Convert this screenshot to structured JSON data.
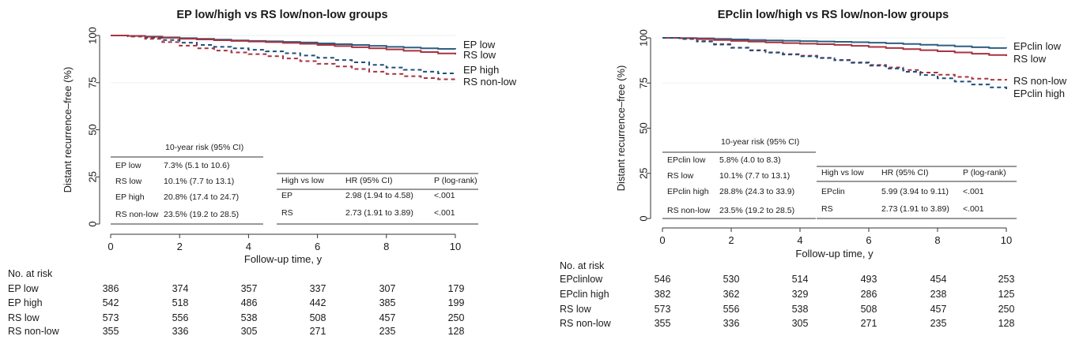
{
  "chart_data": [
    {
      "type": "line",
      "title": "EP low/high vs RS low/non-low groups",
      "xlabel": "Follow-up time, y",
      "ylabel": "Distant recurrence–free (%)",
      "xlim": [
        0,
        10
      ],
      "ylim": [
        0,
        100
      ],
      "xticks": [
        "0",
        "2",
        "4",
        "6",
        "8",
        "10"
      ],
      "yticks": [
        "0",
        "25",
        "50",
        "75",
        "100"
      ],
      "series": [
        {
          "name": "EP low",
          "color": "#2e5f82",
          "dash": false,
          "points": [
            [
              0,
              100
            ],
            [
              0.5,
              99.8
            ],
            [
              1,
              99.4
            ],
            [
              1.5,
              99
            ],
            [
              2,
              98.6
            ],
            [
              2.5,
              98.2
            ],
            [
              3,
              97.8
            ],
            [
              3.5,
              97.4
            ],
            [
              4,
              97.1
            ],
            [
              4.5,
              96.9
            ],
            [
              5,
              96.6
            ],
            [
              5.5,
              96.3
            ],
            [
              6,
              95.8
            ],
            [
              6.5,
              95.4
            ],
            [
              7,
              95
            ],
            [
              7.5,
              94.5
            ],
            [
              8,
              94
            ],
            [
              8.5,
              93.6
            ],
            [
              9,
              93.2
            ],
            [
              9.5,
              92.9
            ],
            [
              10,
              92.7
            ]
          ]
        },
        {
          "name": "RS low",
          "color": "#a8323f",
          "dash": false,
          "points": [
            [
              0,
              100
            ],
            [
              0.5,
              99.8
            ],
            [
              1,
              99.3
            ],
            [
              1.5,
              98.8
            ],
            [
              2,
              98.3
            ],
            [
              2.5,
              97.9
            ],
            [
              3,
              97.5
            ],
            [
              3.5,
              97.1
            ],
            [
              4,
              96.8
            ],
            [
              4.5,
              96.5
            ],
            [
              5,
              96.1
            ],
            [
              5.5,
              95.6
            ],
            [
              6,
              95
            ],
            [
              6.5,
              94.4
            ],
            [
              7,
              93.8
            ],
            [
              7.5,
              93.2
            ],
            [
              8,
              92.6
            ],
            [
              8.5,
              91.9
            ],
            [
              9,
              91.2
            ],
            [
              9.5,
              90.5
            ],
            [
              10,
              89.9
            ]
          ]
        },
        {
          "name": "EP high",
          "color": "#1f4e79",
          "dash": true,
          "points": [
            [
              0,
              100
            ],
            [
              0.5,
              99.6
            ],
            [
              1,
              98.8
            ],
            [
              1.5,
              97.6
            ],
            [
              2,
              96.2
            ],
            [
              2.5,
              95
            ],
            [
              3,
              94
            ],
            [
              3.5,
              93.2
            ],
            [
              4,
              92.4
            ],
            [
              4.5,
              91.6
            ],
            [
              5,
              90.6
            ],
            [
              5.5,
              89.4
            ],
            [
              6,
              88.2
            ],
            [
              6.5,
              87
            ],
            [
              7,
              85.8
            ],
            [
              7.5,
              84.4
            ],
            [
              8,
              83
            ],
            [
              8.5,
              81.8
            ],
            [
              9,
              80.8
            ],
            [
              9.5,
              79.9
            ],
            [
              10,
              79.2
            ]
          ]
        },
        {
          "name": "RS non-low",
          "color": "#a8323f",
          "dash": true,
          "points": [
            [
              0,
              100
            ],
            [
              0.5,
              99.4
            ],
            [
              1,
              98.2
            ],
            [
              1.5,
              96.5
            ],
            [
              2,
              94.6
            ],
            [
              2.5,
              93.2
            ],
            [
              3,
              92
            ],
            [
              3.5,
              91
            ],
            [
              4,
              90.1
            ],
            [
              4.5,
              89
            ],
            [
              5,
              87.8
            ],
            [
              5.5,
              86.4
            ],
            [
              6,
              85
            ],
            [
              6.5,
              83.6
            ],
            [
              7,
              82.2
            ],
            [
              7.5,
              80.8
            ],
            [
              8,
              79.6
            ],
            [
              8.5,
              78.4
            ],
            [
              9,
              77.4
            ],
            [
              9.5,
              76.8
            ],
            [
              10,
              76.5
            ]
          ]
        }
      ],
      "risk_table": {
        "header": [
          "",
          "10-year risk (95% CI)"
        ],
        "rows": [
          [
            "EP low",
            "7.3% (5.1 to 10.6)"
          ],
          [
            "RS low",
            "10.1% (7.7 to 13.1)"
          ],
          [
            "EP high",
            "20.8% (17.4 to 24.7)"
          ],
          [
            "RS non-low",
            "23.5% (19.2 to 28.5)"
          ]
        ]
      },
      "hr_table": {
        "header": [
          "High vs low",
          "HR (95% CI)",
          "P (log-rank)"
        ],
        "rows": [
          [
            "EP",
            "2.98 (1.94 to 4.58)",
            "<.001"
          ],
          [
            "RS",
            "2.73 (1.91 to 3.89)",
            "<.001"
          ]
        ]
      },
      "at_risk": {
        "title": "No. at risk",
        "rows": [
          {
            "label": "EP low",
            "values": [
              "386",
              "374",
              "357",
              "337",
              "307",
              "179"
            ]
          },
          {
            "label": "EP high",
            "values": [
              "542",
              "518",
              "486",
              "442",
              "385",
              "199"
            ]
          },
          {
            "label": "RS low",
            "values": [
              "573",
              "556",
              "538",
              "508",
              "457",
              "250"
            ]
          },
          {
            "label": "RS non-low",
            "values": [
              "355",
              "336",
              "305",
              "271",
              "235",
              "128"
            ]
          }
        ]
      }
    },
    {
      "type": "line",
      "title": "EPclin low/high vs RS low/non-low groups",
      "xlabel": "Follow-up time, y",
      "ylabel": "Distant recurrence–free (%)",
      "xlim": [
        0,
        10
      ],
      "ylim": [
        0,
        100
      ],
      "xticks": [
        "0",
        "2",
        "4",
        "6",
        "8",
        "10"
      ],
      "yticks": [
        "0",
        "25",
        "50",
        "75",
        "100"
      ],
      "series": [
        {
          "name": "EPclin low",
          "color": "#2e5f82",
          "dash": false,
          "points": [
            [
              0,
              100
            ],
            [
              0.5,
              99.9
            ],
            [
              1,
              99.7
            ],
            [
              1.5,
              99.4
            ],
            [
              2,
              99.1
            ],
            [
              2.5,
              98.8
            ],
            [
              3,
              98.6
            ],
            [
              3.5,
              98.4
            ],
            [
              4,
              98.2
            ],
            [
              4.5,
              98
            ],
            [
              5,
              97.8
            ],
            [
              5.5,
              97.6
            ],
            [
              6,
              97.3
            ],
            [
              6.5,
              97
            ],
            [
              7,
              96.6
            ],
            [
              7.5,
              96.2
            ],
            [
              8,
              95.8
            ],
            [
              8.5,
              95.3
            ],
            [
              9,
              94.8
            ],
            [
              9.5,
              94.4
            ],
            [
              10,
              94.2
            ]
          ]
        },
        {
          "name": "RS low",
          "color": "#a8323f",
          "dash": false,
          "points": [
            [
              0,
              100
            ],
            [
              0.5,
              99.8
            ],
            [
              1,
              99.3
            ],
            [
              1.5,
              98.8
            ],
            [
              2,
              98.3
            ],
            [
              2.5,
              97.9
            ],
            [
              3,
              97.5
            ],
            [
              3.5,
              97.1
            ],
            [
              4,
              96.8
            ],
            [
              4.5,
              96.5
            ],
            [
              5,
              96.1
            ],
            [
              5.5,
              95.6
            ],
            [
              6,
              95
            ],
            [
              6.5,
              94.4
            ],
            [
              7,
              93.8
            ],
            [
              7.5,
              93.2
            ],
            [
              8,
              92.6
            ],
            [
              8.5,
              91.9
            ],
            [
              9,
              91.2
            ],
            [
              9.5,
              90.5
            ],
            [
              10,
              89.9
            ]
          ]
        },
        {
          "name": "RS non-low",
          "color": "#a8323f",
          "dash": true,
          "points": [
            [
              0,
              100
            ],
            [
              0.5,
              99.4
            ],
            [
              1,
              98.2
            ],
            [
              1.5,
              96.5
            ],
            [
              2,
              94.6
            ],
            [
              2.5,
              93.2
            ],
            [
              3,
              92
            ],
            [
              3.5,
              91
            ],
            [
              4,
              90.1
            ],
            [
              4.5,
              89
            ],
            [
              5,
              87.8
            ],
            [
              5.5,
              86.4
            ],
            [
              6,
              85
            ],
            [
              6.5,
              83.6
            ],
            [
              7,
              82.2
            ],
            [
              7.5,
              80.8
            ],
            [
              8,
              79.6
            ],
            [
              8.5,
              78.4
            ],
            [
              9,
              77.4
            ],
            [
              9.5,
              76.8
            ],
            [
              10,
              76.5
            ]
          ]
        },
        {
          "name": "EPclin high",
          "color": "#1f4e79",
          "dash": true,
          "points": [
            [
              0,
              100
            ],
            [
              0.5,
              99.4
            ],
            [
              1,
              98
            ],
            [
              1.5,
              96.3
            ],
            [
              2,
              94.5
            ],
            [
              2.5,
              93
            ],
            [
              3,
              91.8
            ],
            [
              3.5,
              90.8
            ],
            [
              4,
              89.8
            ],
            [
              4.5,
              88.8
            ],
            [
              5,
              87.6
            ],
            [
              5.5,
              86.2
            ],
            [
              6,
              84.6
            ],
            [
              6.5,
              83
            ],
            [
              7,
              81.2
            ],
            [
              7.5,
              79.4
            ],
            [
              8,
              77.6
            ],
            [
              8.5,
              75.8
            ],
            [
              9,
              74.2
            ],
            [
              9.5,
              72.6
            ],
            [
              10,
              71.2
            ]
          ]
        }
      ],
      "risk_table": {
        "header": [
          "",
          "10-year risk  (95% CI)"
        ],
        "rows": [
          [
            "EPclin low",
            "5.8% (4.0 to 8.3)"
          ],
          [
            "RS low",
            "10.1% (7.7 to 13.1)"
          ],
          [
            "EPclin high",
            "28.8% (24.3 to 33.9)"
          ],
          [
            "RS non-low",
            "23.5% (19.2 to 28.5)"
          ]
        ]
      },
      "hr_table": {
        "header": [
          "High vs low",
          "HR (95% CI)",
          "P (log-rank)"
        ],
        "rows": [
          [
            "EPclin",
            "5.99 (3.94 to 9.11)",
            "<.001"
          ],
          [
            "RS",
            "2.73 (1.91 to 3.89)",
            "<.001"
          ]
        ]
      },
      "at_risk": {
        "title": "No. at risk",
        "rows": [
          {
            "label": "EPclinlow",
            "values": [
              "546",
              "530",
              "514",
              "493",
              "454",
              "253"
            ]
          },
          {
            "label": "EPclin high",
            "values": [
              "382",
              "362",
              "329",
              "286",
              "238",
              "125"
            ]
          },
          {
            "label": "RS low",
            "values": [
              "573",
              "556",
              "538",
              "508",
              "457",
              "250"
            ]
          },
          {
            "label": "RS non-low",
            "values": [
              "355",
              "336",
              "305",
              "271",
              "235",
              "128"
            ]
          }
        ]
      }
    }
  ]
}
